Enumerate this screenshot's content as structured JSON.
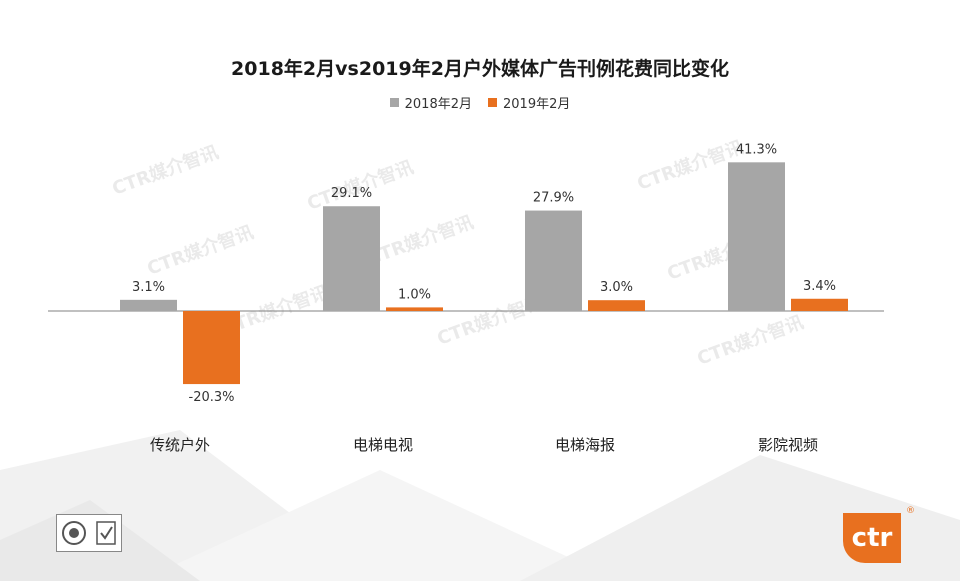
{
  "chart_data": {
    "type": "bar",
    "title": "2018年2月vs2019年2月户外媒体广告刊例花费同比变化",
    "categories": [
      "传统户外",
      "电梯电视",
      "电梯海报",
      "影院视频"
    ],
    "series": [
      {
        "name": "2018年2月",
        "color": "#a6a6a6",
        "values": [
          3.1,
          29.1,
          27.9,
          41.3
        ],
        "labels": [
          "3.1%",
          "29.1%",
          "27.9%",
          "41.3%"
        ]
      },
      {
        "name": "2019年2月",
        "color": "#e8701f",
        "values": [
          -20.3,
          1.0,
          3.0,
          3.4
        ],
        "labels": [
          "-20.3%",
          "1.0%",
          "3.0%",
          "3.4%"
        ]
      }
    ],
    "ylim": [
      -25,
      45
    ],
    "grid": false,
    "legend_position": "top-center"
  },
  "logo": {
    "text": "ctr",
    "reg_mark": "®",
    "color": "#e8701f"
  },
  "watermark": "CTR媒介智讯"
}
